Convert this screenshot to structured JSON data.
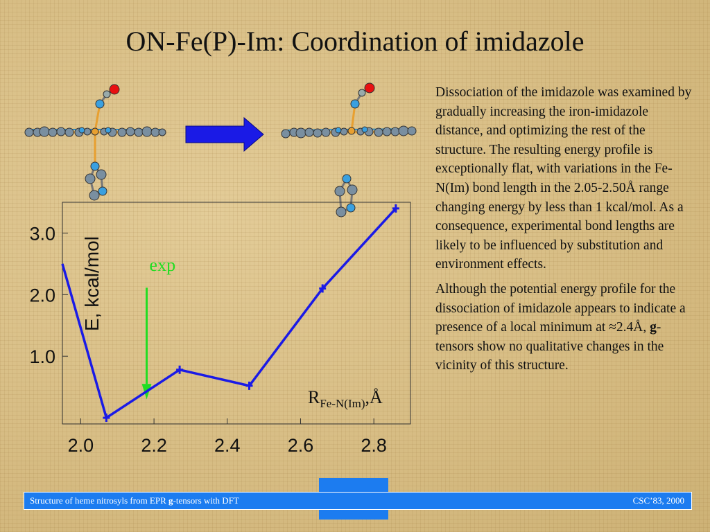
{
  "slide": {
    "title": "ON-Fe(P)-Im: Coordination of imidazole",
    "body": {
      "p1": "Dissociation of the imidazole was examined by gradually increasing the iron-imidazole distance, and optimizing the rest of the structure. The resulting energy profile is exceptionally flat, with variations in the Fe-N(Im) bond length in the 2.05-2.50Å range changing energy by less than 1 kcal/mol. As a consequence, experimental bond lengths are likely to be influenced by substitution and environment effects.",
      "p2_prefix": "Although the potential energy profile for the dissociation of imidazole appears to indicate a presence of a local minimum at ≈2.4Å, ",
      "p2_bold": "g",
      "p2_suffix": "-tensors show no qualitative changes in the vicinity of this structure."
    },
    "footer": {
      "left_prefix": "Structure of heme nitrosyls from EPR ",
      "left_bold": "g",
      "left_suffix": "-tensors with DFT",
      "right": "CSC’83, 2000"
    }
  },
  "colors": {
    "series": "#1a1ae6",
    "exp_arrow": "#22dd22",
    "big_arrow": "#1a1ae6",
    "footer": "#1c7cf0"
  },
  "icons": {
    "left_molecule": "nitrosyl-porphyrin-imidazole-bound-model",
    "right_molecule": "nitrosyl-porphyrin-imidazole-dissociated-model",
    "transition_arrow": "right-arrow-icon"
  },
  "chart_data": {
    "type": "line",
    "xlim": [
      1.95,
      2.9
    ],
    "ylim": [
      -0.1,
      3.5
    ],
    "x_ticks": [
      "2.0",
      "2.2",
      "2.4",
      "2.6",
      "2.8"
    ],
    "y_ticks": [
      "1.0",
      "2.0",
      "3.0"
    ],
    "ylabel": "E, kcal/mol",
    "xlabel_main": "R",
    "xlabel_sub": "Fe-N(Im)",
    "xlabel_unit": ",Å",
    "series": [
      {
        "x": [
          1.95,
          2.07,
          2.27,
          2.46,
          2.66,
          2.86
        ],
        "y": [
          2.5,
          0.0,
          0.78,
          0.52,
          2.1,
          3.4
        ]
      }
    ],
    "annotation": {
      "label": "exp",
      "x": 2.18
    },
    "grid": false
  }
}
